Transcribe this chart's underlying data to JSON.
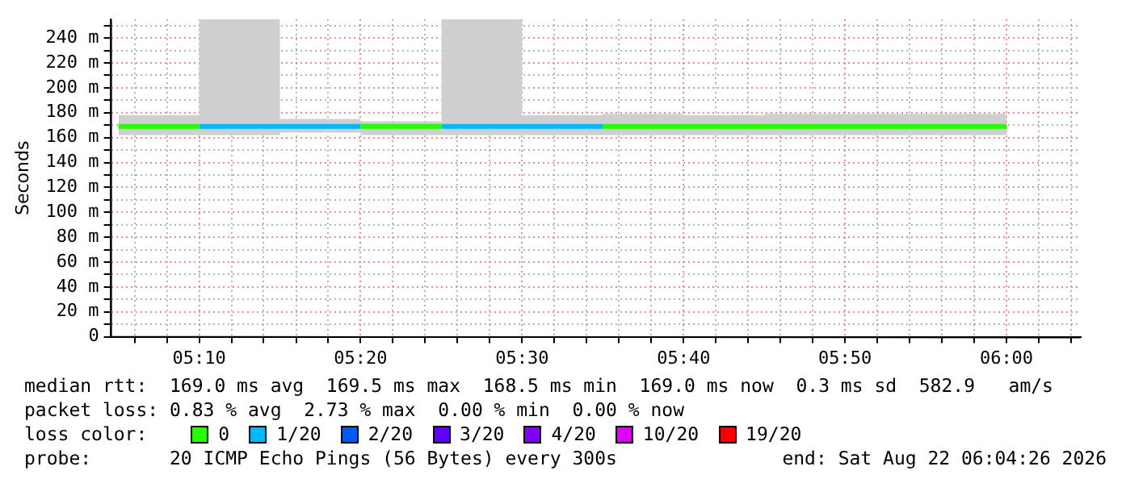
{
  "chart_data": {
    "type": "step",
    "ylabel": "Seconds",
    "legend_title": "loss color:",
    "legend": "bottom",
    "grid": true,
    "marker": "none",
    "xlim": [
      5.075,
      6.0767
    ],
    "ylim": [
      0,
      255
    ],
    "xticks": [
      {
        "value": 5.1,
        "label": null
      },
      {
        "value": 5.1333,
        "label": null
      },
      {
        "value": 5.1667,
        "label": "05:10"
      },
      {
        "value": 5.2,
        "label": null
      },
      {
        "value": 5.2333,
        "label": null
      },
      {
        "value": 5.2667,
        "label": null
      },
      {
        "value": 5.3,
        "label": null
      },
      {
        "value": 5.3333,
        "label": "05:20"
      },
      {
        "value": 5.3667,
        "label": null
      },
      {
        "value": 5.4,
        "label": null
      },
      {
        "value": 5.4333,
        "label": null
      },
      {
        "value": 5.4667,
        "label": null
      },
      {
        "value": 5.5,
        "label": "05:30"
      },
      {
        "value": 5.5333,
        "label": null
      },
      {
        "value": 5.5667,
        "label": null
      },
      {
        "value": 5.6,
        "label": null
      },
      {
        "value": 5.6333,
        "label": null
      },
      {
        "value": 5.6667,
        "label": "05:40"
      },
      {
        "value": 5.7,
        "label": null
      },
      {
        "value": 5.7333,
        "label": null
      },
      {
        "value": 5.7667,
        "label": null
      },
      {
        "value": 5.8,
        "label": null
      },
      {
        "value": 5.8333,
        "label": "05:50"
      },
      {
        "value": 5.8667,
        "label": null
      },
      {
        "value": 5.9,
        "label": null
      },
      {
        "value": 5.9333,
        "label": null
      },
      {
        "value": 5.9667,
        "label": null
      },
      {
        "value": 6.0,
        "label": "06:00"
      },
      {
        "value": 6.0333,
        "label": null
      },
      {
        "value": 6.0667,
        "label": null
      }
    ],
    "yticks": [
      0,
      {
        "value": 10,
        "label": null
      },
      {
        "value": 20,
        "label": "20 m"
      },
      {
        "value": 30,
        "label": null
      },
      {
        "value": 40,
        "label": "40 m"
      },
      {
        "value": 50,
        "label": null
      },
      {
        "value": 60,
        "label": "60 m"
      },
      {
        "value": 70,
        "label": null
      },
      {
        "value": 80,
        "label": "80 m"
      },
      {
        "value": 90,
        "label": null
      },
      {
        "value": 100,
        "label": "100 m"
      },
      {
        "value": 110,
        "label": null
      },
      {
        "value": 120,
        "label": "120 m"
      },
      {
        "value": 130,
        "label": null
      },
      {
        "value": 140,
        "label": "140 m"
      },
      {
        "value": 150,
        "label": null
      },
      {
        "value": 160,
        "label": "160 m"
      },
      {
        "value": 170,
        "label": null
      },
      {
        "value": 180,
        "label": "180 m"
      },
      {
        "value": 190,
        "label": null
      },
      {
        "value": 200,
        "label": "200 m"
      },
      {
        "value": 210,
        "label": null
      },
      {
        "value": 220,
        "label": "220 m"
      },
      {
        "value": 230,
        "label": null
      },
      {
        "value": 240,
        "label": "240 m"
      },
      {
        "value": 250,
        "label": null
      }
    ],
    "series": [
      {
        "name": "0",
        "color": "#26ff00",
        "x": [
          5.0833,
          5.1667,
          5.25,
          5.3333,
          5.4167,
          5.5,
          5.5833,
          5.6667,
          5.75,
          5.8333,
          5.9167,
          6.0
        ],
        "values": [
          169,
          169,
          null,
          169,
          169,
          null,
          169,
          169,
          169,
          169,
          169,
          169
        ],
        "lower": [
          162,
          162,
          162,
          164,
          162,
          162,
          162,
          162,
          162,
          162,
          162,
          162
        ],
        "upper": [
          180,
          178,
          255,
          175,
          173,
          255,
          178,
          179,
          178,
          179,
          179,
          179
        ]
      },
      {
        "name": "1/20",
        "color": "#00b8ff",
        "x": [
          5.1667,
          5.25,
          5.3333,
          5.375,
          5.4167,
          5.5,
          5.5833
        ],
        "values": [
          169,
          169,
          169,
          null,
          169,
          169,
          169
        ]
      },
      {
        "name": "2/20",
        "color": "#0059ff"
      },
      {
        "name": "3/20",
        "color": "#5e00ff"
      },
      {
        "name": "4/20",
        "color": "#7e00ff"
      },
      {
        "name": "10/20",
        "color": "#dd00ff"
      },
      {
        "name": "19/20",
        "color": "#ff0000"
      }
    ],
    "annotations": [
      "median rtt:  169.0 ms avg  169.5 ms max  168.5 ms min  169.0 ms now  0.3 ms sd  582.9   am/s",
      "packet loss: 0.83 % avg  2.73 % max  0.00 % min  0.00 % now",
      "probe:       20 ICMP Echo Pings (56 Bytes) every 300s",
      "end: Sat Aug 22 06:04:26 2026"
    ]
  }
}
